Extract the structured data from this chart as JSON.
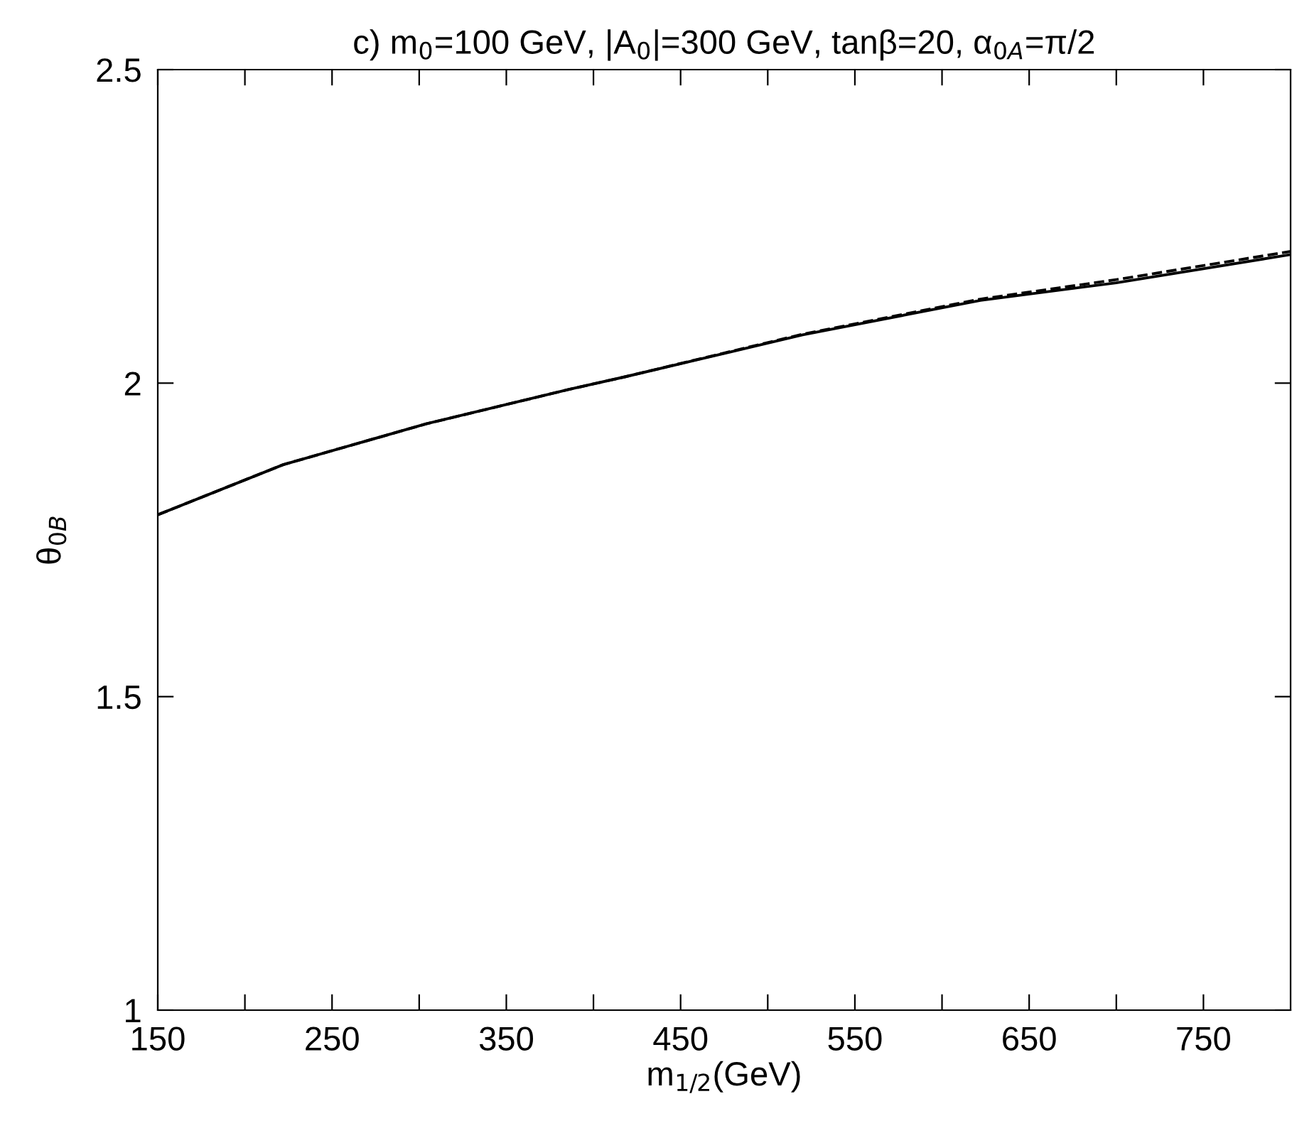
{
  "chart_data": {
    "type": "line",
    "title": "c) m$_{0}$=100 GeV, |A$_{0}$|=300 GeV, tanβ=20, α$_{0A}$=π/2",
    "xlabel": "m$_{1/2}$(GeV)",
    "ylabel": "θ$_{0B}$",
    "x": [
      150,
      222,
      304,
      386,
      418,
      520,
      622,
      700,
      800
    ],
    "series": [
      {
        "color": "#000000",
        "line_style": "solid",
        "values": [
          1.79,
          1.87,
          1.935,
          1.99,
          2.01,
          2.077,
          2.132,
          2.16,
          2.205
        ]
      },
      {
        "color": "#000000",
        "line_style": "dashed",
        "values": [
          1.79,
          1.87,
          1.935,
          1.99,
          2.01,
          2.078,
          2.134,
          2.165,
          2.21
        ]
      }
    ],
    "xlim": [
      150,
      800
    ],
    "ylim": [
      1,
      2.5
    ],
    "xticks": [
      150,
      {
        "value": 200,
        "label": null
      },
      250,
      {
        "value": 300,
        "label": null
      },
      350,
      {
        "value": 400,
        "label": null
      },
      450,
      {
        "value": 500,
        "label": null
      },
      550,
      {
        "value": 600,
        "label": null
      },
      650,
      {
        "value": 700,
        "label": null
      },
      750
    ],
    "yticks": [
      1,
      1.5,
      2,
      2.5
    ],
    "grid": false,
    "legend": false
  }
}
